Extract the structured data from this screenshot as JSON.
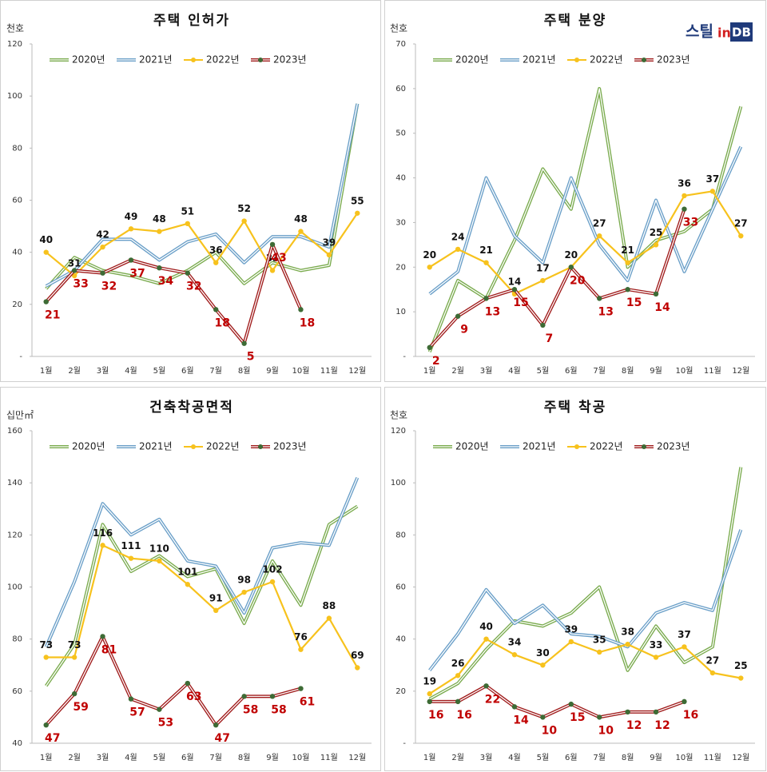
{
  "logo": {
    "parts": [
      "스틸",
      "in",
      "DB"
    ]
  },
  "chart_data": [
    {
      "type": "line",
      "title": "주택 인허가",
      "y_label": "천호",
      "categories": [
        "1월",
        "2월",
        "3월",
        "4월",
        "5월",
        "6월",
        "7월",
        "8월",
        "9월",
        "10월",
        "11월",
        "12월"
      ],
      "ylim": [
        0,
        120
      ],
      "yticks": [
        {
          "value": 0,
          "label": "-"
        },
        20,
        40,
        60,
        80,
        100,
        120
      ],
      "grid": false,
      "legend": "top",
      "series": [
        {
          "name": "2020년",
          "color": "#7aab4e",
          "style": "double",
          "values": [
            26,
            38,
            33,
            31,
            28,
            33,
            40,
            28,
            36,
            33,
            35,
            97
          ]
        },
        {
          "name": "2021년",
          "color": "#6a9fc8",
          "style": "double",
          "values": [
            27,
            33,
            45,
            45,
            37,
            44,
            47,
            36,
            46,
            46,
            42,
            97
          ]
        },
        {
          "name": "2022년",
          "color": "#f7c21d",
          "style": "marker",
          "marker_color": "#f7c21d",
          "label_color": "#111111",
          "values": [
            40,
            31,
            42,
            49,
            48,
            51,
            36,
            52,
            33,
            48,
            39,
            55
          ]
        },
        {
          "name": "2023년",
          "color": "#a01c1c",
          "style": "double-marker",
          "marker_color": "#3d6b35",
          "label_color": "#c00000",
          "values": [
            21,
            33,
            32,
            37,
            34,
            32,
            18,
            5,
            43,
            18,
            null,
            null
          ]
        }
      ]
    },
    {
      "type": "line",
      "title": "주택 분양",
      "y_label": "천호",
      "categories": [
        "1월",
        "2월",
        "3월",
        "4월",
        "5월",
        "6월",
        "7월",
        "8월",
        "9월",
        "10월",
        "11월",
        "12월"
      ],
      "ylim": [
        0,
        70
      ],
      "yticks": [
        {
          "value": 0,
          "label": "-"
        },
        10,
        20,
        30,
        40,
        50,
        60,
        70
      ],
      "grid": false,
      "legend": "top",
      "series": [
        {
          "name": "2020년",
          "color": "#7aab4e",
          "style": "double",
          "values": [
            1,
            17,
            13,
            26,
            42,
            33,
            60,
            20,
            26,
            28,
            33,
            56
          ]
        },
        {
          "name": "2021년",
          "color": "#6a9fc8",
          "style": "double",
          "values": [
            14,
            19,
            40,
            27,
            21,
            40,
            25,
            17,
            35,
            19,
            33,
            47
          ]
        },
        {
          "name": "2022년",
          "color": "#f7c21d",
          "style": "marker",
          "marker_color": "#f7c21d",
          "label_color": "#111111",
          "values": [
            20,
            24,
            21,
            14,
            17,
            20,
            27,
            21,
            25,
            36,
            37,
            27
          ]
        },
        {
          "name": "2023년",
          "color": "#a01c1c",
          "style": "double-marker",
          "marker_color": "#3d6b35",
          "label_color": "#c00000",
          "values": [
            2,
            9,
            13,
            15,
            7,
            20,
            13,
            15,
            14,
            33,
            null,
            null
          ]
        }
      ]
    },
    {
      "type": "line",
      "title": "건축착공면적",
      "y_label": "십만㎡",
      "categories": [
        "1월",
        "2월",
        "3월",
        "4월",
        "5월",
        "6월",
        "7월",
        "8월",
        "9월",
        "10월",
        "11월",
        "12월"
      ],
      "ylim": [
        40,
        160
      ],
      "yticks": [
        40,
        60,
        80,
        100,
        120,
        140,
        160
      ],
      "grid": false,
      "legend": "top",
      "series": [
        {
          "name": "2020년",
          "color": "#7aab4e",
          "style": "double",
          "values": [
            62,
            78,
            124,
            106,
            112,
            104,
            107,
            86,
            110,
            93,
            124,
            131
          ]
        },
        {
          "name": "2021년",
          "color": "#6a9fc8",
          "style": "double",
          "values": [
            77,
            102,
            132,
            120,
            126,
            110,
            108,
            90,
            115,
            117,
            116,
            142
          ]
        },
        {
          "name": "2022년",
          "color": "#f7c21d",
          "style": "marker",
          "marker_color": "#f7c21d",
          "label_color": "#111111",
          "values": [
            73,
            73,
            116,
            111,
            110,
            101,
            91,
            98,
            102,
            76,
            88,
            69
          ]
        },
        {
          "name": "2023년",
          "color": "#a01c1c",
          "style": "double-marker",
          "marker_color": "#3d6b35",
          "label_color": "#c00000",
          "values": [
            47,
            59,
            81,
            57,
            53,
            63,
            47,
            58,
            58,
            61,
            null,
            null
          ]
        }
      ]
    },
    {
      "type": "line",
      "title": "주택 착공",
      "y_label": "천호",
      "categories": [
        "1월",
        "2월",
        "3월",
        "4월",
        "5월",
        "6월",
        "7월",
        "8월",
        "9월",
        "10월",
        "11월",
        "12월"
      ],
      "ylim": [
        0,
        120
      ],
      "yticks": [
        {
          "value": 0,
          "label": "-"
        },
        20,
        40,
        60,
        80,
        100,
        120
      ],
      "grid": false,
      "legend": "top",
      "series": [
        {
          "name": "2020년",
          "color": "#7aab4e",
          "style": "double",
          "values": [
            17,
            23,
            36,
            47,
            45,
            50,
            60,
            28,
            45,
            31,
            37,
            106
          ]
        },
        {
          "name": "2021년",
          "color": "#6a9fc8",
          "style": "double",
          "values": [
            28,
            42,
            59,
            46,
            53,
            42,
            41,
            37,
            50,
            54,
            51,
            82
          ]
        },
        {
          "name": "2022년",
          "color": "#f7c21d",
          "style": "marker",
          "marker_color": "#f7c21d",
          "label_color": "#111111",
          "values": [
            19,
            26,
            40,
            34,
            30,
            39,
            35,
            38,
            33,
            37,
            27,
            25
          ]
        },
        {
          "name": "2023년",
          "color": "#a01c1c",
          "style": "double-marker",
          "marker_color": "#3d6b35",
          "label_color": "#c00000",
          "values": [
            16,
            16,
            22,
            14,
            10,
            15,
            10,
            12,
            12,
            16,
            null,
            null
          ]
        }
      ]
    }
  ]
}
